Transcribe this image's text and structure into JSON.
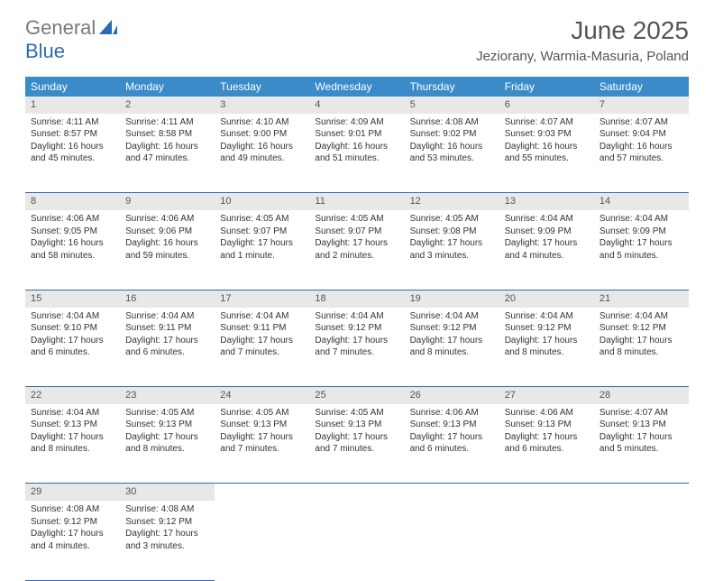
{
  "brand": {
    "part1": "General",
    "part2": "Blue"
  },
  "title": "June 2025",
  "location": "Jeziorany, Warmia-Masuria, Poland",
  "header_bg": "#3b8bc9",
  "header_fg": "#ffffff",
  "rule_color": "#2a6bb5",
  "daynum_bg": "#e8e8e8",
  "text_color": "#333333",
  "days": [
    "Sunday",
    "Monday",
    "Tuesday",
    "Wednesday",
    "Thursday",
    "Friday",
    "Saturday"
  ],
  "weeks": [
    [
      {
        "n": "1",
        "sr": "4:11 AM",
        "ss": "8:57 PM",
        "dl": "16 hours and 45 minutes."
      },
      {
        "n": "2",
        "sr": "4:11 AM",
        "ss": "8:58 PM",
        "dl": "16 hours and 47 minutes."
      },
      {
        "n": "3",
        "sr": "4:10 AM",
        "ss": "9:00 PM",
        "dl": "16 hours and 49 minutes."
      },
      {
        "n": "4",
        "sr": "4:09 AM",
        "ss": "9:01 PM",
        "dl": "16 hours and 51 minutes."
      },
      {
        "n": "5",
        "sr": "4:08 AM",
        "ss": "9:02 PM",
        "dl": "16 hours and 53 minutes."
      },
      {
        "n": "6",
        "sr": "4:07 AM",
        "ss": "9:03 PM",
        "dl": "16 hours and 55 minutes."
      },
      {
        "n": "7",
        "sr": "4:07 AM",
        "ss": "9:04 PM",
        "dl": "16 hours and 57 minutes."
      }
    ],
    [
      {
        "n": "8",
        "sr": "4:06 AM",
        "ss": "9:05 PM",
        "dl": "16 hours and 58 minutes."
      },
      {
        "n": "9",
        "sr": "4:06 AM",
        "ss": "9:06 PM",
        "dl": "16 hours and 59 minutes."
      },
      {
        "n": "10",
        "sr": "4:05 AM",
        "ss": "9:07 PM",
        "dl": "17 hours and 1 minute."
      },
      {
        "n": "11",
        "sr": "4:05 AM",
        "ss": "9:07 PM",
        "dl": "17 hours and 2 minutes."
      },
      {
        "n": "12",
        "sr": "4:05 AM",
        "ss": "9:08 PM",
        "dl": "17 hours and 3 minutes."
      },
      {
        "n": "13",
        "sr": "4:04 AM",
        "ss": "9:09 PM",
        "dl": "17 hours and 4 minutes."
      },
      {
        "n": "14",
        "sr": "4:04 AM",
        "ss": "9:09 PM",
        "dl": "17 hours and 5 minutes."
      }
    ],
    [
      {
        "n": "15",
        "sr": "4:04 AM",
        "ss": "9:10 PM",
        "dl": "17 hours and 6 minutes."
      },
      {
        "n": "16",
        "sr": "4:04 AM",
        "ss": "9:11 PM",
        "dl": "17 hours and 6 minutes."
      },
      {
        "n": "17",
        "sr": "4:04 AM",
        "ss": "9:11 PM",
        "dl": "17 hours and 7 minutes."
      },
      {
        "n": "18",
        "sr": "4:04 AM",
        "ss": "9:12 PM",
        "dl": "17 hours and 7 minutes."
      },
      {
        "n": "19",
        "sr": "4:04 AM",
        "ss": "9:12 PM",
        "dl": "17 hours and 8 minutes."
      },
      {
        "n": "20",
        "sr": "4:04 AM",
        "ss": "9:12 PM",
        "dl": "17 hours and 8 minutes."
      },
      {
        "n": "21",
        "sr": "4:04 AM",
        "ss": "9:12 PM",
        "dl": "17 hours and 8 minutes."
      }
    ],
    [
      {
        "n": "22",
        "sr": "4:04 AM",
        "ss": "9:13 PM",
        "dl": "17 hours and 8 minutes."
      },
      {
        "n": "23",
        "sr": "4:05 AM",
        "ss": "9:13 PM",
        "dl": "17 hours and 8 minutes."
      },
      {
        "n": "24",
        "sr": "4:05 AM",
        "ss": "9:13 PM",
        "dl": "17 hours and 7 minutes."
      },
      {
        "n": "25",
        "sr": "4:05 AM",
        "ss": "9:13 PM",
        "dl": "17 hours and 7 minutes."
      },
      {
        "n": "26",
        "sr": "4:06 AM",
        "ss": "9:13 PM",
        "dl": "17 hours and 6 minutes."
      },
      {
        "n": "27",
        "sr": "4:06 AM",
        "ss": "9:13 PM",
        "dl": "17 hours and 6 minutes."
      },
      {
        "n": "28",
        "sr": "4:07 AM",
        "ss": "9:13 PM",
        "dl": "17 hours and 5 minutes."
      }
    ],
    [
      {
        "n": "29",
        "sr": "4:08 AM",
        "ss": "9:12 PM",
        "dl": "17 hours and 4 minutes."
      },
      {
        "n": "30",
        "sr": "4:08 AM",
        "ss": "9:12 PM",
        "dl": "17 hours and 3 minutes."
      },
      null,
      null,
      null,
      null,
      null
    ]
  ],
  "labels": {
    "sunrise": "Sunrise:",
    "sunset": "Sunset:",
    "daylight": "Daylight:"
  }
}
